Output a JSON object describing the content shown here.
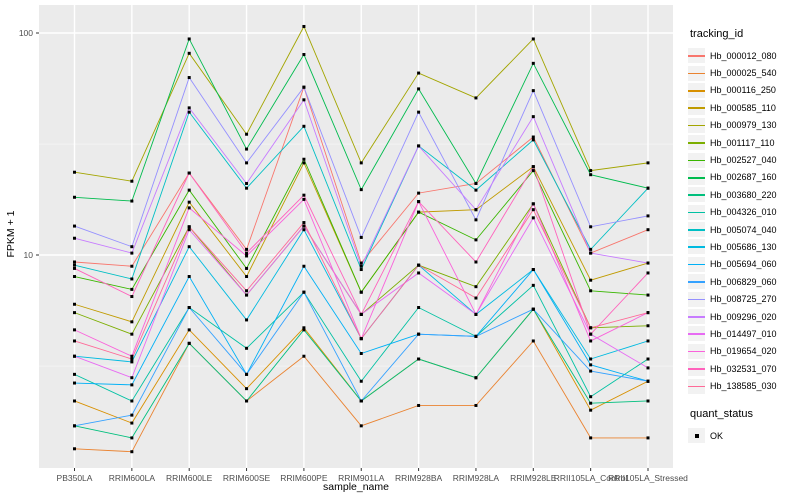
{
  "chart_data": {
    "type": "line",
    "title": "",
    "xlabel": "sample_name",
    "ylabel": "FPKM + 1",
    "yscale": "log10",
    "ylim": [
      1.1,
      134
    ],
    "grid": true,
    "panel_bg": "#EBEBEB",
    "grid_color": "#FFFFFF",
    "tick_label_color": "#4D4D4D",
    "yticks": [
      {
        "value": 100,
        "label": "100"
      },
      {
        "value": 10,
        "label": "10"
      }
    ],
    "minor_breaks": [
      31.6,
      3.16
    ],
    "categories": [
      "PB350LA",
      "RRIM600LA",
      "RRIM600LE",
      "RRIM600SE",
      "RRIM600PE",
      "RRIM901LA",
      "RRIM928BA",
      "RRIM928LA",
      "RRIM928LE",
      "RRII105LA_Control",
      "RRII105LA_Stressed"
    ],
    "legend": {
      "title": "tracking_id",
      "position": "right"
    },
    "quant_legend": {
      "title": "quant_status",
      "items": [
        {
          "label": "OK",
          "marker": "black-square"
        }
      ]
    },
    "series": [
      {
        "name": "Hb_000012_080",
        "color": "#F8766D",
        "values": [
          9.3,
          8.9,
          23.4,
          10.6,
          57,
          9.2,
          19,
          21,
          34,
          10.2,
          13
        ]
      },
      {
        "name": "Hb_000025_540",
        "color": "#EA8331",
        "values": [
          1.34,
          1.3,
          4.0,
          2.2,
          3.5,
          1.7,
          2.1,
          2.1,
          4.1,
          1.5,
          1.5
        ]
      },
      {
        "name": "Hb_000116_250",
        "color": "#D89000",
        "values": [
          2.2,
          1.75,
          4.6,
          2.5,
          4.7,
          2.2,
          3.4,
          2.8,
          5.7,
          2.0,
          2.7
        ]
      },
      {
        "name": "Hb_000585_110",
        "color": "#C09B00",
        "values": [
          6.0,
          5.0,
          17.3,
          8.0,
          26,
          6.8,
          15.6,
          16,
          25,
          7.7,
          9.2
        ]
      },
      {
        "name": "Hb_000979_130",
        "color": "#A3A500",
        "values": [
          23.6,
          21.5,
          81,
          35,
          107,
          26,
          66,
          51,
          94,
          24,
          26
        ]
      },
      {
        "name": "Hb_001117_110",
        "color": "#7CAE00",
        "values": [
          5.5,
          4.4,
          13.4,
          6.6,
          13.5,
          5.4,
          9.0,
          7.2,
          17,
          4.7,
          4.8
        ]
      },
      {
        "name": "Hb_002527_040",
        "color": "#39B600",
        "values": [
          8.0,
          7.0,
          19.6,
          8.7,
          27,
          6.8,
          15.6,
          11.7,
          24,
          6.9,
          6.6
        ]
      },
      {
        "name": "Hb_002687_160",
        "color": "#00BB4E",
        "values": [
          18.2,
          17.5,
          94,
          30,
          80,
          19.7,
          56,
          21,
          73,
          23,
          20
        ]
      },
      {
        "name": "Hb_003680_220",
        "color": "#00BF7D",
        "values": [
          1.7,
          1.5,
          4.0,
          2.2,
          4.6,
          2.2,
          3.4,
          2.8,
          5.7,
          2.15,
          2.2
        ]
      },
      {
        "name": "Hb_004326_010",
        "color": "#00C1A3",
        "values": [
          2.9,
          2.2,
          5.8,
          3.8,
          6.8,
          2.7,
          5.8,
          4.3,
          7.3,
          2.3,
          3.4
        ]
      },
      {
        "name": "Hb_005074_040",
        "color": "#00BFC4",
        "values": [
          9.0,
          7.8,
          44,
          20,
          38,
          8.6,
          31,
          19.6,
          33,
          10.6,
          20
        ]
      },
      {
        "name": "Hb_005686_130",
        "color": "#00BAE0",
        "values": [
          3.5,
          3.3,
          10.9,
          5.1,
          13,
          4.2,
          9.0,
          5.4,
          8.6,
          3.4,
          4.1
        ]
      },
      {
        "name": "Hb_005694_060",
        "color": "#00B0F6",
        "values": [
          2.65,
          2.6,
          8.0,
          2.9,
          8.9,
          3.6,
          4.4,
          4.3,
          8.6,
          3.2,
          2.7
        ]
      },
      {
        "name": "Hb_006829_060",
        "color": "#35A2FF",
        "values": [
          1.7,
          1.9,
          5.8,
          2.9,
          6.8,
          2.2,
          4.4,
          4.3,
          5.7,
          3.0,
          2.7
        ]
      },
      {
        "name": "Hb_008725_270",
        "color": "#9590FF",
        "values": [
          13.5,
          10.9,
          63,
          26,
          57,
          12,
          44,
          14.4,
          55,
          13.4,
          15
        ]
      },
      {
        "name": "Hb_009296_020",
        "color": "#C77CFF",
        "values": [
          11.9,
          10.2,
          46,
          21,
          50,
          8.9,
          31,
          16,
          42,
          10.2,
          9.2
        ]
      },
      {
        "name": "Hb_014497_010",
        "color": "#E76BF3",
        "values": [
          3.5,
          2.8,
          13.0,
          6.6,
          13.5,
          5.4,
          8.3,
          5.4,
          14.7,
          4.4,
          3.1
        ]
      },
      {
        "name": "Hb_019654_020",
        "color": "#FA62DB",
        "values": [
          4.6,
          3.5,
          16.3,
          9.9,
          17.8,
          4.2,
          17.4,
          5.4,
          17,
          4.1,
          5.5
        ]
      },
      {
        "name": "Hb_032531_070",
        "color": "#FF62BC",
        "values": [
          8.7,
          6.5,
          23.4,
          10.2,
          18.6,
          5.4,
          17.4,
          9.3,
          25,
          4.4,
          8.3
        ]
      },
      {
        "name": "Hb_138585_030",
        "color": "#FF6A98",
        "values": [
          4.1,
          3.4,
          13.4,
          6.9,
          14,
          4.2,
          9.0,
          6.4,
          16,
          4.7,
          5.5
        ]
      }
    ]
  }
}
